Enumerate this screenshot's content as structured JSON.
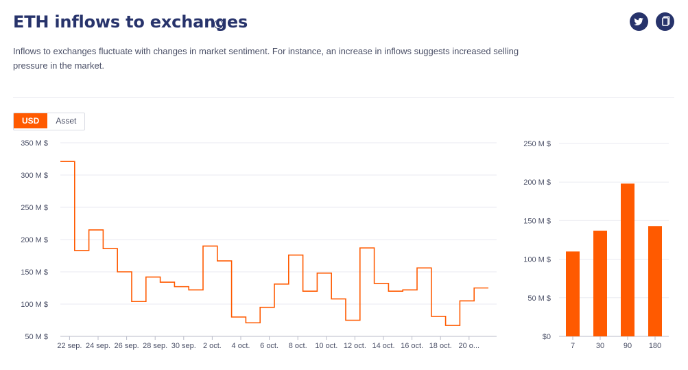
{
  "header": {
    "title": "ETH inflows to exchanges",
    "info_icon": "info-icon",
    "description": "Inflows to exchanges fluctuate with changes in market sentiment. For instance, an increase in inflows suggests increased selling pressure in the market.",
    "share_icons": [
      "twitter-icon",
      "copy-icon"
    ]
  },
  "toggle": {
    "usd_label": "USD",
    "asset_label": "Asset",
    "selected": "USD"
  },
  "colors": {
    "accent": "#ff5a00",
    "navy": "#27336b",
    "grid": "#e9eaf0"
  },
  "chart_data": [
    {
      "type": "line",
      "step": true,
      "x_ticks": [
        "22 sep.",
        "24 sep.",
        "26 sep.",
        "28 sep.",
        "30 sep.",
        "2 oct.",
        "4 oct.",
        "6 oct.",
        "8 oct.",
        "10 oct.",
        "12 oct.",
        "14 oct.",
        "16 oct.",
        "18 oct.",
        "20 o..."
      ],
      "y_ticks": [
        "50 M $",
        "100 M $",
        "150 M $",
        "200 M $",
        "250 M $",
        "300 M $",
        "350 M $"
      ],
      "ylim": [
        50,
        350
      ],
      "unit": "M $",
      "series": [
        {
          "values": [
            321,
            183,
            215,
            186,
            150,
            104,
            142,
            134,
            127,
            122,
            190,
            167,
            80,
            71,
            95,
            131,
            176,
            120,
            148,
            108,
            75,
            187,
            132,
            120,
            122,
            156,
            81,
            67,
            105,
            125
          ]
        }
      ],
      "grid": true
    },
    {
      "type": "bar",
      "categories": [
        "7",
        "30",
        "90",
        "180"
      ],
      "values": [
        110,
        137,
        198,
        143
      ],
      "y_ticks": [
        "$0",
        "50 M $",
        "100 M $",
        "150 M $",
        "200 M $",
        "250 M $"
      ],
      "ylim": [
        0,
        250
      ],
      "unit": "M $",
      "grid": true
    }
  ]
}
